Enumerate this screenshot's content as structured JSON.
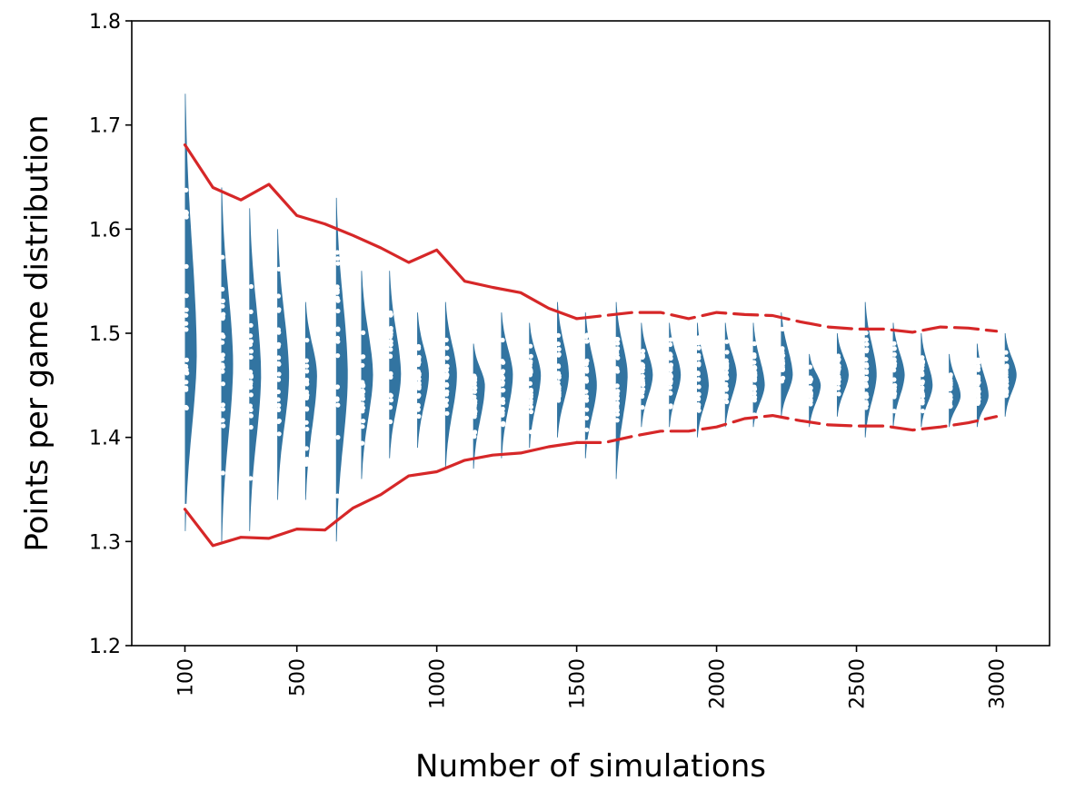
{
  "chart_data": {
    "type": "violin",
    "title": "",
    "xlabel": "Number of simulations",
    "ylabel": "Points per game distribution",
    "ylim": [
      1.2,
      1.8
    ],
    "xlim": [
      -90,
      3190
    ],
    "yticks": [
      1.2,
      1.3,
      1.4,
      1.5,
      1.6,
      1.7,
      1.8
    ],
    "yticklabels": [
      "1.2",
      "1.3",
      "1.4",
      "1.5",
      "1.6",
      "1.7",
      "1.8"
    ],
    "xticks": [
      100,
      500,
      1000,
      1500,
      2000,
      2500,
      3000
    ],
    "xticklabels": [
      "100",
      "500",
      "1000",
      "1500",
      "2000",
      "2500",
      "3000"
    ],
    "grid": false,
    "legend": "none",
    "colors": {
      "violin": "#3274a1",
      "bounds": "#d62728",
      "samples": "#ffffff"
    },
    "violins": [
      {
        "x": 100,
        "center": 1.48,
        "min": 1.31,
        "max": 1.73
      },
      {
        "x": 230,
        "center": 1.47,
        "min": 1.3,
        "max": 1.64
      },
      {
        "x": 330,
        "center": 1.46,
        "min": 1.31,
        "max": 1.62
      },
      {
        "x": 430,
        "center": 1.46,
        "min": 1.34,
        "max": 1.6
      },
      {
        "x": 530,
        "center": 1.46,
        "min": 1.34,
        "max": 1.53
      },
      {
        "x": 640,
        "center": 1.46,
        "min": 1.3,
        "max": 1.63
      },
      {
        "x": 730,
        "center": 1.46,
        "min": 1.36,
        "max": 1.56
      },
      {
        "x": 830,
        "center": 1.46,
        "min": 1.38,
        "max": 1.56
      },
      {
        "x": 930,
        "center": 1.46,
        "min": 1.39,
        "max": 1.52
      },
      {
        "x": 1030,
        "center": 1.46,
        "min": 1.37,
        "max": 1.53
      },
      {
        "x": 1130,
        "center": 1.45,
        "min": 1.37,
        "max": 1.49
      },
      {
        "x": 1230,
        "center": 1.46,
        "min": 1.38,
        "max": 1.52
      },
      {
        "x": 1330,
        "center": 1.46,
        "min": 1.39,
        "max": 1.51
      },
      {
        "x": 1430,
        "center": 1.46,
        "min": 1.4,
        "max": 1.53
      },
      {
        "x": 1530,
        "center": 1.45,
        "min": 1.38,
        "max": 1.52
      },
      {
        "x": 1640,
        "center": 1.46,
        "min": 1.36,
        "max": 1.53
      },
      {
        "x": 1730,
        "center": 1.46,
        "min": 1.41,
        "max": 1.51
      },
      {
        "x": 1830,
        "center": 1.46,
        "min": 1.41,
        "max": 1.51
      },
      {
        "x": 1930,
        "center": 1.45,
        "min": 1.4,
        "max": 1.51
      },
      {
        "x": 2030,
        "center": 1.46,
        "min": 1.41,
        "max": 1.51
      },
      {
        "x": 2130,
        "center": 1.45,
        "min": 1.41,
        "max": 1.51
      },
      {
        "x": 2230,
        "center": 1.46,
        "min": 1.42,
        "max": 1.52
      },
      {
        "x": 2330,
        "center": 1.45,
        "min": 1.41,
        "max": 1.48
      },
      {
        "x": 2430,
        "center": 1.46,
        "min": 1.42,
        "max": 1.5
      },
      {
        "x": 2530,
        "center": 1.46,
        "min": 1.4,
        "max": 1.53
      },
      {
        "x": 2630,
        "center": 1.46,
        "min": 1.41,
        "max": 1.51
      },
      {
        "x": 2730,
        "center": 1.45,
        "min": 1.41,
        "max": 1.5
      },
      {
        "x": 2830,
        "center": 1.44,
        "min": 1.41,
        "max": 1.48
      },
      {
        "x": 2930,
        "center": 1.44,
        "min": 1.41,
        "max": 1.49
      },
      {
        "x": 3030,
        "center": 1.46,
        "min": 1.42,
        "max": 1.5
      }
    ],
    "series": [
      {
        "role": "upper_bound",
        "x": [
          100,
          200,
          300,
          400,
          500,
          600,
          700,
          800,
          900,
          1000,
          1100,
          1200,
          1300,
          1400,
          1500,
          1600,
          1700,
          1800,
          1900,
          2000,
          2100,
          2200,
          2300,
          2400,
          2500,
          2600,
          2700,
          2800,
          2900,
          3000
        ],
        "values": [
          1.681,
          1.64,
          1.628,
          1.643,
          1.613,
          1.605,
          1.594,
          1.582,
          1.568,
          1.58,
          1.55,
          1.544,
          1.539,
          1.524,
          1.514,
          1.517,
          1.52,
          1.52,
          1.514,
          1.52,
          1.518,
          1.517,
          1.511,
          1.506,
          1.504,
          1.504,
          1.501,
          1.506,
          1.505,
          1.502
        ]
      },
      {
        "role": "lower_bound",
        "x": [
          100,
          200,
          300,
          400,
          500,
          600,
          700,
          800,
          900,
          1000,
          1100,
          1200,
          1300,
          1400,
          1500,
          1600,
          1700,
          1800,
          1900,
          2000,
          2100,
          2200,
          2300,
          2400,
          2500,
          2600,
          2700,
          2800,
          2900,
          3000
        ],
        "values": [
          1.331,
          1.296,
          1.304,
          1.303,
          1.312,
          1.311,
          1.332,
          1.345,
          1.363,
          1.367,
          1.378,
          1.383,
          1.385,
          1.391,
          1.395,
          1.395,
          1.401,
          1.406,
          1.406,
          1.41,
          1.418,
          1.421,
          1.416,
          1.412,
          1.411,
          1.411,
          1.407,
          1.41,
          1.414,
          1.42
        ]
      }
    ]
  }
}
